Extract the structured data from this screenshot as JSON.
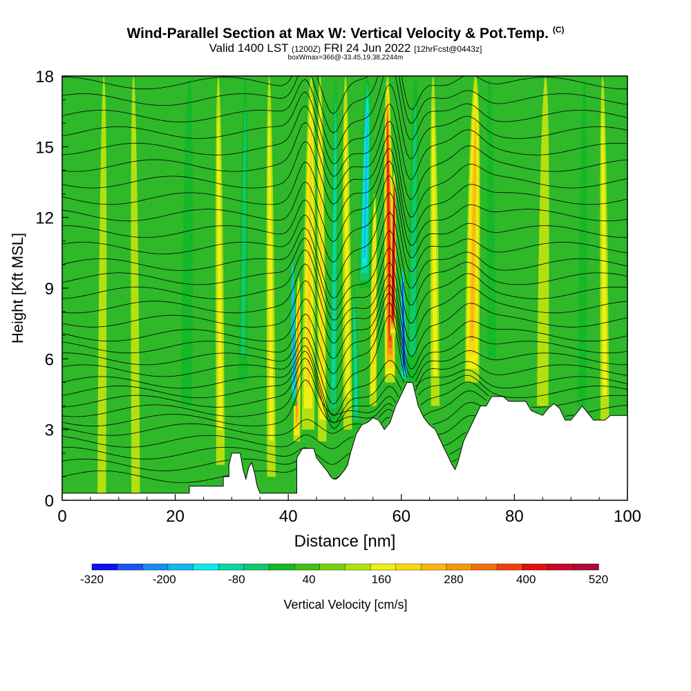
{
  "header": {
    "title_main": "Wind-Parallel Section at Max W: Vertical Velocity & Pot.Temp.",
    "title_unit": "(C)",
    "valid_prefix": "Valid 1400 LST",
    "valid_utc": "(1200Z)",
    "valid_date": "FRI 24 Jun 2022",
    "forecast_info": "[12hrFcst@0443z]",
    "box_info": "boxWmax=366@-33.45,19.38,2244m"
  },
  "colors": {
    "palette": [
      "#1010ee",
      "#1a55f0",
      "#1a8cf0",
      "#12b8f0",
      "#10e8e8",
      "#08d8a0",
      "#10c86c",
      "#14b828",
      "#40c010",
      "#7ad010",
      "#b4e010",
      "#f0f010",
      "#f8d810",
      "#f8b810",
      "#f89810",
      "#f07010",
      "#f04010",
      "#e01010",
      "#c80828",
      "#b00838"
    ],
    "background_field": "#2fb82a",
    "contour": "#000000"
  },
  "chart_data": {
    "type": "heatmap",
    "title": "Wind-Parallel Section at Max W: Vertical Velocity & Pot.Temp.",
    "xlabel": "Distance [nm]",
    "ylabel": "Height [Kft MSL]",
    "xlim": [
      0,
      100
    ],
    "ylim": [
      0,
      18
    ],
    "x_ticks": [
      0,
      20,
      40,
      60,
      80,
      100
    ],
    "y_ticks": [
      0,
      3,
      6,
      9,
      12,
      15,
      18
    ],
    "colorbar": {
      "label": "Vertical Velocity [cm/s]",
      "min": -320,
      "max": 520,
      "step": 40,
      "tick_labels": [
        -320,
        -200,
        -80,
        40,
        160,
        280,
        400,
        520
      ]
    },
    "w_features": [
      {
        "x": 41.5,
        "bottom": 2.5,
        "top": 9.5,
        "w": 200,
        "width": 1.2
      },
      {
        "x": 41.0,
        "bottom": 4.0,
        "top": 10.5,
        "w": -250,
        "width": 1.0
      },
      {
        "x": 43.5,
        "bottom": 3.0,
        "top": 18.0,
        "w": 120,
        "width": 2.2
      },
      {
        "x": 46.0,
        "bottom": 2.5,
        "top": 18.0,
        "w": 100,
        "width": 1.5
      },
      {
        "x": 48.0,
        "bottom": 3.0,
        "top": 18.0,
        "w": -100,
        "width": 1.5
      },
      {
        "x": 50.5,
        "bottom": 3.0,
        "top": 18.0,
        "w": 80,
        "width": 1.5
      },
      {
        "x": 53.5,
        "bottom": 9.0,
        "top": 18.0,
        "w": -200,
        "width": 2.0
      },
      {
        "x": 52.0,
        "bottom": 3.0,
        "top": 9.0,
        "w": -120,
        "width": 1.2
      },
      {
        "x": 55.0,
        "bottom": 4.0,
        "top": 13.0,
        "w": 100,
        "width": 1.2
      },
      {
        "x": 58.0,
        "bottom": 5.0,
        "top": 18.0,
        "w": 300,
        "width": 1.8
      },
      {
        "x": 58.5,
        "bottom": 7.0,
        "top": 14.0,
        "w": 480,
        "width": 1.0
      },
      {
        "x": 60.5,
        "bottom": 5.0,
        "top": 10.0,
        "w": -300,
        "width": 1.2
      },
      {
        "x": 62.0,
        "bottom": 5.0,
        "top": 18.0,
        "w": -60,
        "width": 2.0
      },
      {
        "x": 66.0,
        "bottom": 4.0,
        "top": 18.0,
        "w": 60,
        "width": 1.5
      },
      {
        "x": 72.5,
        "bottom": 5.0,
        "top": 18.0,
        "w": 140,
        "width": 2.5
      },
      {
        "x": 76.0,
        "bottom": 6.0,
        "top": 18.0,
        "w": -40,
        "width": 1.5
      },
      {
        "x": 22.0,
        "bottom": 4.0,
        "top": 18.0,
        "w": -40,
        "width": 2.0
      },
      {
        "x": 28.0,
        "bottom": 1.5,
        "top": 18.0,
        "w": 80,
        "width": 1.5
      },
      {
        "x": 32.0,
        "bottom": 5.0,
        "top": 18.0,
        "w": -80,
        "width": 1.5
      },
      {
        "x": 37.0,
        "bottom": 1.0,
        "top": 18.0,
        "w": 60,
        "width": 1.5
      },
      {
        "x": 7.0,
        "bottom": 0.3,
        "top": 18.0,
        "w": 40,
        "width": 1.5
      },
      {
        "x": 13.0,
        "bottom": 0.3,
        "top": 18.0,
        "w": 40,
        "width": 1.5
      },
      {
        "x": 85.0,
        "bottom": 4.0,
        "top": 18.0,
        "w": 40,
        "width": 2.0
      },
      {
        "x": 96.0,
        "bottom": 3.0,
        "top": 18.0,
        "w": 80,
        "width": 1.5
      },
      {
        "x": 92.0,
        "bottom": 4.0,
        "top": 18.0,
        "w": -40,
        "width": 1.5
      }
    ],
    "terrain_kft": [
      [
        0,
        0.3
      ],
      [
        22.5,
        0.3
      ],
      [
        22.5,
        0.6
      ],
      [
        28.5,
        0.6
      ],
      [
        28.5,
        1.0
      ],
      [
        29.5,
        1.0
      ],
      [
        29.5,
        1.5
      ],
      [
        30.0,
        2.0
      ],
      [
        31.5,
        2.0
      ],
      [
        32.0,
        1.3
      ],
      [
        32.5,
        0.9
      ],
      [
        33.0,
        1.4
      ],
      [
        33.5,
        1.6
      ],
      [
        34.0,
        1.2
      ],
      [
        34.5,
        0.6
      ],
      [
        35.0,
        0.3
      ],
      [
        41.5,
        0.3
      ],
      [
        41.5,
        1.8
      ],
      [
        42.5,
        2.2
      ],
      [
        44.5,
        2.2
      ],
      [
        45.0,
        1.8
      ],
      [
        46.0,
        1.5
      ],
      [
        47.0,
        1.2
      ],
      [
        47.5,
        1.0
      ],
      [
        48.0,
        0.9
      ],
      [
        48.5,
        0.9
      ],
      [
        49.0,
        1.0
      ],
      [
        50.0,
        1.3
      ],
      [
        50.5,
        1.5
      ],
      [
        51.0,
        2.0
      ],
      [
        52.0,
        2.8
      ],
      [
        53.0,
        3.2
      ],
      [
        54.0,
        3.3
      ],
      [
        55.0,
        3.5
      ],
      [
        56.0,
        3.4
      ],
      [
        57.0,
        3.0
      ],
      [
        58.0,
        3.3
      ],
      [
        59.0,
        4.0
      ],
      [
        60.0,
        4.5
      ],
      [
        61.0,
        5.0
      ],
      [
        62.0,
        5.0
      ],
      [
        63.0,
        4.0
      ],
      [
        64.0,
        3.5
      ],
      [
        65.0,
        3.2
      ],
      [
        66.0,
        3.0
      ],
      [
        67.0,
        2.5
      ],
      [
        68.0,
        2.0
      ],
      [
        69.0,
        1.5
      ],
      [
        69.5,
        1.3
      ],
      [
        70.0,
        1.6
      ],
      [
        71.0,
        2.5
      ],
      [
        72.0,
        3.0
      ],
      [
        73.0,
        3.5
      ],
      [
        74.0,
        4.0
      ],
      [
        75.0,
        4.0
      ],
      [
        76.0,
        4.4
      ],
      [
        78.0,
        4.4
      ],
      [
        79.0,
        4.2
      ],
      [
        82.0,
        4.2
      ],
      [
        83.0,
        3.8
      ],
      [
        85.0,
        3.6
      ],
      [
        86.0,
        3.9
      ],
      [
        87.0,
        4.1
      ],
      [
        88.0,
        3.9
      ],
      [
        89.0,
        3.4
      ],
      [
        90.0,
        3.4
      ],
      [
        91.0,
        3.7
      ],
      [
        92.0,
        4.0
      ],
      [
        93.0,
        3.7
      ],
      [
        94.0,
        3.4
      ],
      [
        96.0,
        3.4
      ],
      [
        97.0,
        3.6
      ],
      [
        100.0,
        3.6
      ]
    ],
    "theta_contour_bases_kft": [
      1.0,
      1.5,
      2.0,
      2.5,
      3.0,
      3.4,
      3.8,
      4.2,
      4.6,
      5.0,
      5.5,
      6.0,
      6.5,
      7.0,
      7.6,
      8.2,
      8.8,
      9.4,
      10.0,
      10.7,
      11.4,
      12.1,
      12.8,
      13.5,
      14.2,
      14.9,
      15.6,
      16.3,
      17.0,
      17.7
    ]
  }
}
